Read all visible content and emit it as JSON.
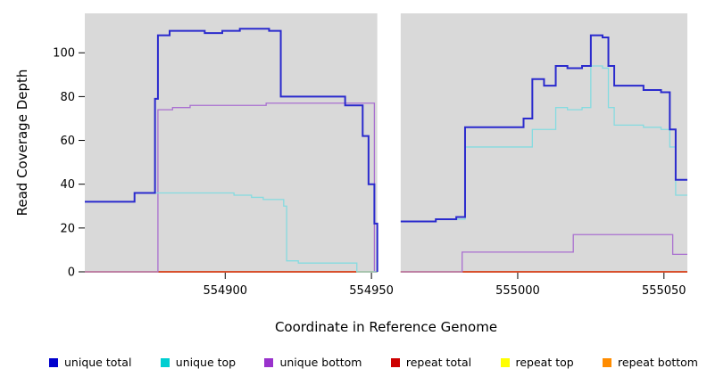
{
  "chart_data": {
    "type": "line",
    "step": true,
    "title": "",
    "xlabel": "Coordinate in Reference Genome",
    "ylabel": "Read Coverage Depth",
    "xlim": [
      554852,
      555058
    ],
    "ylim": [
      0,
      118
    ],
    "x_ticks": [
      554900,
      554950,
      555000,
      555050
    ],
    "y_ticks": [
      0,
      20,
      40,
      60,
      80,
      100
    ],
    "grid": false,
    "legend_position": "bottom",
    "plot_background": "#d9d9d9",
    "gap_region": [
      554952,
      554960
    ],
    "series": [
      {
        "name": "unique total",
        "color": "#2a2acd",
        "legend_color": "#0000cd",
        "segments": [
          [
            [
              554852,
              32
            ],
            [
              554869,
              36
            ],
            [
              554876,
              79
            ],
            [
              554877,
              108
            ],
            [
              554881,
              110
            ],
            [
              554893,
              109
            ],
            [
              554899,
              110
            ],
            [
              554905,
              111
            ],
            [
              554915,
              110
            ],
            [
              554919,
              80
            ],
            [
              554941,
              76
            ],
            [
              554947,
              62
            ],
            [
              554949,
              40
            ],
            [
              554951,
              22
            ],
            [
              554952,
              0
            ]
          ],
          [
            [
              554960,
              23
            ],
            [
              554972,
              24
            ],
            [
              554979,
              25
            ],
            [
              554982,
              66
            ],
            [
              555002,
              70
            ],
            [
              555005,
              88
            ],
            [
              555009,
              85
            ],
            [
              555013,
              94
            ],
            [
              555017,
              93
            ],
            [
              555022,
              94
            ],
            [
              555025,
              108
            ],
            [
              555029,
              107
            ],
            [
              555031,
              94
            ],
            [
              555033,
              85
            ],
            [
              555043,
              83
            ],
            [
              555049,
              82
            ],
            [
              555052,
              65
            ],
            [
              555054,
              42
            ],
            [
              555058,
              42
            ]
          ]
        ]
      },
      {
        "name": "unique top",
        "color": "#85dbe0",
        "legend_color": "#00ced1",
        "segments": [
          [
            [
              554852,
              32
            ],
            [
              554869,
              36
            ],
            [
              554899,
              36
            ],
            [
              554903,
              35
            ],
            [
              554909,
              34
            ],
            [
              554913,
              33
            ],
            [
              554917,
              33
            ],
            [
              554920,
              30
            ],
            [
              554921,
              5
            ],
            [
              554925,
              4
            ],
            [
              554943,
              4
            ],
            [
              554945,
              0
            ],
            [
              554952,
              0
            ]
          ],
          [
            [
              554960,
              23
            ],
            [
              554972,
              24
            ],
            [
              554979,
              24
            ],
            [
              554982,
              57
            ],
            [
              555002,
              57
            ],
            [
              555005,
              65
            ],
            [
              555013,
              75
            ],
            [
              555017,
              74
            ],
            [
              555022,
              75
            ],
            [
              555025,
              94
            ],
            [
              555029,
              93
            ],
            [
              555031,
              75
            ],
            [
              555033,
              67
            ],
            [
              555043,
              66
            ],
            [
              555049,
              65
            ],
            [
              555052,
              57
            ],
            [
              555054,
              35
            ],
            [
              555058,
              35
            ]
          ]
        ]
      },
      {
        "name": "unique bottom",
        "color": "#a96fd0",
        "legend_color": "#9932cc",
        "segments": [
          [
            [
              554852,
              0
            ],
            [
              554876,
              0
            ],
            [
              554877,
              74
            ],
            [
              554882,
              75
            ],
            [
              554888,
              76
            ],
            [
              554914,
              77
            ],
            [
              554950,
              77
            ],
            [
              554951,
              0
            ],
            [
              554952,
              0
            ]
          ],
          [
            [
              554960,
              0
            ],
            [
              554979,
              0
            ],
            [
              554981,
              9
            ],
            [
              555017,
              9
            ],
            [
              555019,
              17
            ],
            [
              555051,
              17
            ],
            [
              555053,
              8
            ],
            [
              555058,
              8
            ]
          ]
        ]
      },
      {
        "name": "repeat total",
        "color": "#cd0000",
        "legend_color": "#cd0000",
        "segments": [
          [
            [
              554852,
              0
            ],
            [
              554952,
              0
            ]
          ],
          [
            [
              554960,
              0
            ],
            [
              555058,
              0
            ]
          ]
        ]
      },
      {
        "name": "repeat top",
        "color": "#ffff00",
        "legend_color": "#ffff00",
        "segments": [
          [
            [
              554852,
              0
            ],
            [
              554952,
              0
            ]
          ],
          [
            [
              554960,
              0
            ],
            [
              555058,
              0
            ]
          ]
        ]
      },
      {
        "name": "repeat bottom",
        "color": "#ff9100",
        "legend_color": "#ff8c00",
        "segments": [
          [
            [
              554852,
              0
            ],
            [
              554952,
              0
            ]
          ],
          [
            [
              554960,
              0
            ],
            [
              555058,
              0
            ]
          ]
        ]
      }
    ]
  }
}
